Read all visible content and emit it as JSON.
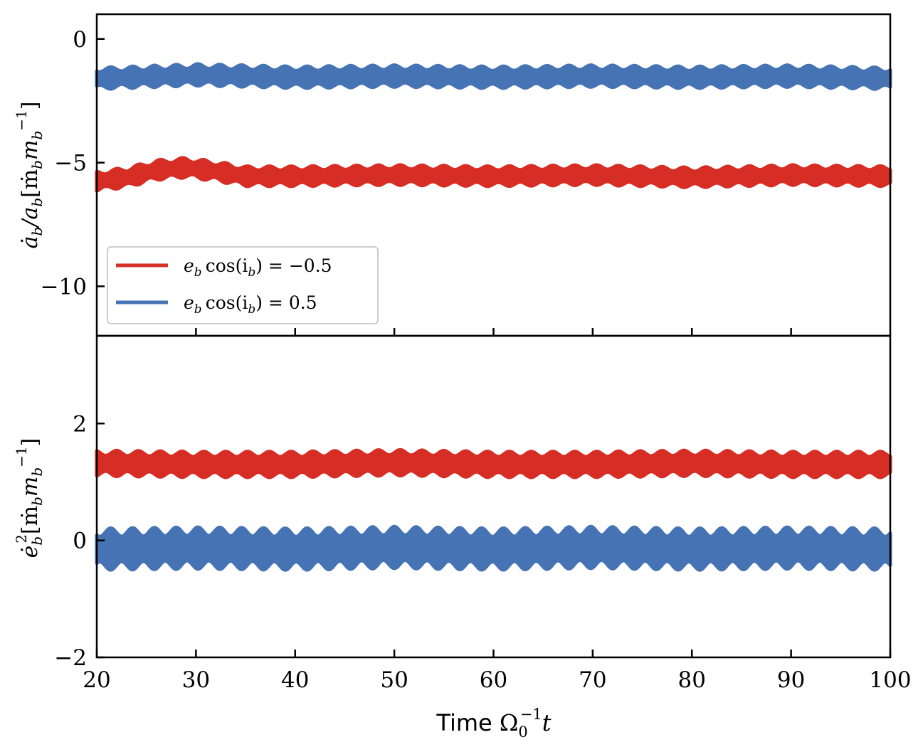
{
  "colors": {
    "red": "#d62d25",
    "blue": "#4573b4",
    "axis": "#000000",
    "legend_border": "#cccccc"
  },
  "chart_data": [
    {
      "type": "line",
      "panel": "top",
      "ylabel_parts": {
        "lead": "ȧ",
        "sub1": "b",
        "mid": "/a",
        "sub2": "b",
        "bracket_open": "[ṁ",
        "sub3": "b",
        "m": "m",
        "sub4": "b",
        "sup": "−1",
        "bracket_close": "]"
      },
      "xlim": [
        20,
        100
      ],
      "ylim": [
        -12,
        1
      ],
      "yticks": [
        0,
        -5,
        -10
      ],
      "ytick_labels": [
        "0",
        "−5",
        "−10"
      ],
      "xticks": [
        30,
        40,
        50,
        60,
        70,
        80,
        90
      ],
      "series": [
        {
          "name": "e_b cos(i_b) = −0.5",
          "color_key": "red",
          "mean": -5.55,
          "band": [
            -6.1,
            -4.9
          ],
          "trend": [
            [
              20,
              -5.75
            ],
            [
              23,
              -5.6
            ],
            [
              26,
              -5.3
            ],
            [
              29,
              -5.2
            ],
            [
              32,
              -5.35
            ],
            [
              35,
              -5.55
            ],
            [
              40,
              -5.55
            ],
            [
              50,
              -5.5
            ],
            [
              60,
              -5.55
            ],
            [
              70,
              -5.5
            ],
            [
              80,
              -5.6
            ],
            [
              90,
              -5.5
            ],
            [
              100,
              -5.55
            ]
          ]
        },
        {
          "name": "e_b cos(i_b) = 0.5",
          "color_key": "blue",
          "mean": -1.55,
          "band": [
            -2.2,
            -0.9
          ],
          "trend": [
            [
              20,
              -1.6
            ],
            [
              30,
              -1.45
            ],
            [
              40,
              -1.55
            ],
            [
              50,
              -1.5
            ],
            [
              60,
              -1.55
            ],
            [
              70,
              -1.5
            ],
            [
              80,
              -1.55
            ],
            [
              90,
              -1.5
            ],
            [
              100,
              -1.6
            ]
          ]
        }
      ],
      "legend": {
        "placement": "lower-left",
        "entries": [
          {
            "color_key": "red",
            "e": "e",
            "sub": "b",
            "cos": "cos(i",
            "sub2": "b",
            "rest": ") = −0.5"
          },
          {
            "color_key": "blue",
            "e": "e",
            "sub": "b",
            "cos": "cos(i",
            "sub2": "b",
            "rest": ") = 0.5"
          }
        ]
      }
    },
    {
      "type": "line",
      "panel": "bottom",
      "ylabel_parts": {
        "lead": "ė",
        "sub1": "b",
        "sup1": "2",
        "bracket_open": "[ṁ",
        "sub3": "b",
        "m": "m",
        "sub4": "b",
        "sup": "−1",
        "bracket_close": "]"
      },
      "xlim": [
        20,
        100
      ],
      "ylim": [
        -2,
        3.5
      ],
      "yticks": [
        2,
        0,
        -2
      ],
      "ytick_labels": [
        "2",
        "0",
        "−2"
      ],
      "xticks": [
        20,
        30,
        40,
        50,
        60,
        70,
        80,
        90,
        100
      ],
      "xtick_labels": [
        "20",
        "30",
        "40",
        "50",
        "60",
        "70",
        "80",
        "90",
        "100"
      ],
      "xlabel_parts": {
        "text": "Time ",
        "omega": "Ω",
        "sub": "0",
        "sup": "−1",
        "t": "t"
      },
      "series": [
        {
          "name": "e_b cos(i_b) = −0.5",
          "color_key": "red",
          "mean": 1.3,
          "band": [
            1.0,
            1.65
          ],
          "trend": [
            [
              20,
              1.32
            ],
            [
              30,
              1.3
            ],
            [
              40,
              1.3
            ],
            [
              50,
              1.33
            ],
            [
              60,
              1.3
            ],
            [
              70,
              1.3
            ],
            [
              80,
              1.32
            ],
            [
              90,
              1.3
            ],
            [
              100,
              1.3
            ]
          ]
        },
        {
          "name": "e_b cos(i_b) = 0.5",
          "color_key": "blue",
          "mean": -0.15,
          "band": [
            -0.65,
            0.4
          ],
          "trend": [
            [
              20,
              -0.15
            ],
            [
              30,
              -0.13
            ],
            [
              40,
              -0.15
            ],
            [
              50,
              -0.12
            ],
            [
              60,
              -0.15
            ],
            [
              70,
              -0.12
            ],
            [
              80,
              -0.15
            ],
            [
              90,
              -0.13
            ],
            [
              100,
              -0.15
            ]
          ]
        }
      ]
    }
  ]
}
